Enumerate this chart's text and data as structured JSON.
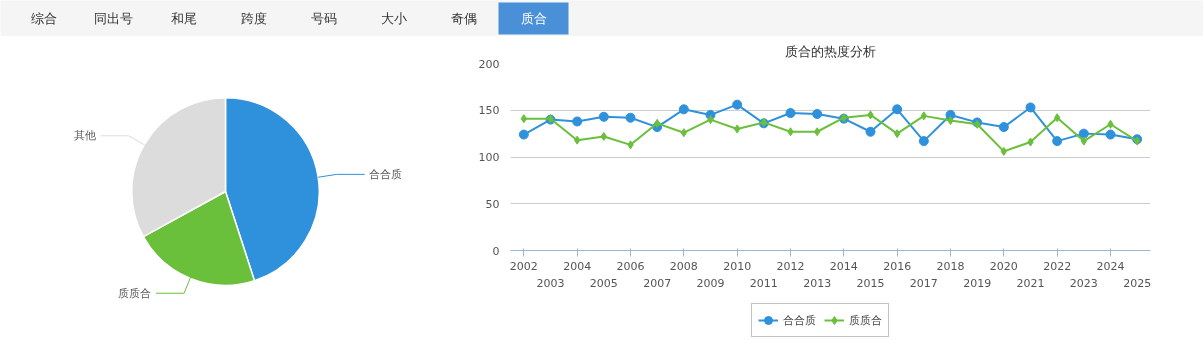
{
  "chart_data": [
    {
      "type": "other",
      "annotations": [
        "综合",
        "同出号",
        "和尾",
        "跨度",
        "号码",
        "大小",
        "奇偶",
        "质合"
      ],
      "colors": [
        "#f5f5f5",
        "#f5f5f5",
        "#f5f5f5",
        "#f5f5f5",
        "#f5f5f5",
        "#f5f5f5",
        "#f5f5f5",
        "#4a90d9"
      ]
    },
    {
      "type": "pie",
      "categories": [
        "合合质",
        "质质合",
        "其他"
      ],
      "values": [
        45,
        22,
        33
      ],
      "colors": [
        "#2f91dc",
        "#6abf3b",
        "#dcdcdc"
      ]
    },
    {
      "type": "line",
      "title": "质合的热度分析",
      "categories": [
        "2002",
        "2003",
        "2004",
        "2005",
        "2006",
        "2007",
        "2008",
        "2009",
        "2010",
        "2011",
        "2012",
        "2013",
        "2014",
        "2015",
        "2016",
        "2017",
        "2018",
        "2019",
        "2020",
        "2021",
        "2022",
        "2023",
        "2024",
        "2025"
      ],
      "ylim": [
        0,
        200
      ],
      "yticks": [
        0,
        50,
        100,
        150,
        200
      ],
      "grid": "y",
      "legend": "bottom",
      "series": [
        {
          "name": "合合质",
          "color": "#2f91dc",
          "marker": "circle",
          "values": [
            124,
            140,
            138,
            143,
            142,
            132,
            151,
            145,
            156,
            136,
            147,
            146,
            141,
            127,
            151,
            117,
            145,
            137,
            132,
            153,
            117,
            125,
            124,
            119
          ]
        },
        {
          "name": "质质合",
          "color": "#6abf3b",
          "marker": "diamond",
          "values": [
            141,
            141,
            118,
            122,
            113,
            136,
            126,
            140,
            130,
            137,
            127,
            127,
            142,
            145,
            125,
            144,
            139,
            135,
            106,
            116,
            142,
            117,
            135,
            117
          ]
        }
      ]
    }
  ]
}
